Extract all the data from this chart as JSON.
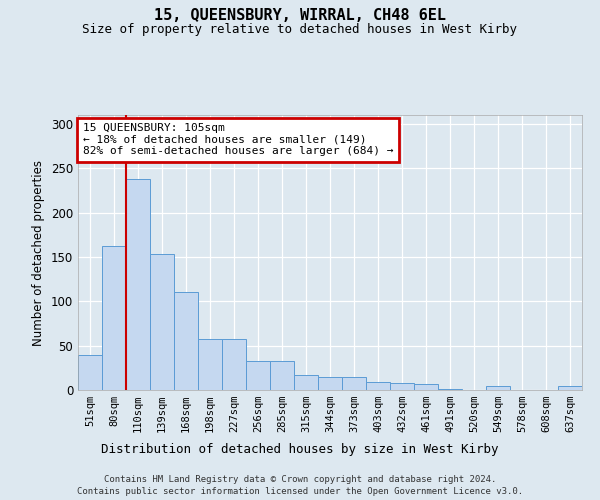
{
  "title1": "15, QUEENSBURY, WIRRAL, CH48 6EL",
  "title2": "Size of property relative to detached houses in West Kirby",
  "xlabel": "Distribution of detached houses by size in West Kirby",
  "ylabel": "Number of detached properties",
  "categories": [
    "51sqm",
    "80sqm",
    "110sqm",
    "139sqm",
    "168sqm",
    "198sqm",
    "227sqm",
    "256sqm",
    "285sqm",
    "315sqm",
    "344sqm",
    "373sqm",
    "403sqm",
    "432sqm",
    "461sqm",
    "491sqm",
    "520sqm",
    "549sqm",
    "578sqm",
    "608sqm",
    "637sqm"
  ],
  "values": [
    40,
    162,
    238,
    153,
    110,
    57,
    57,
    33,
    33,
    17,
    15,
    15,
    9,
    8,
    7,
    1,
    0,
    4,
    0,
    0,
    4
  ],
  "bar_color": "#c5d8f0",
  "bar_edge_color": "#5b9bd5",
  "highlight_bar_index": 2,
  "highlight_line_color": "#cc0000",
  "annotation_text": "15 QUEENSBURY: 105sqm\n← 18% of detached houses are smaller (149)\n82% of semi-detached houses are larger (684) →",
  "annotation_box_color": "#ffffff",
  "annotation_border_color": "#cc0000",
  "ylim": [
    0,
    310
  ],
  "yticks": [
    0,
    50,
    100,
    150,
    200,
    250,
    300
  ],
  "footer1": "Contains HM Land Registry data © Crown copyright and database right 2024.",
  "footer2": "Contains public sector information licensed under the Open Government Licence v3.0.",
  "bg_color": "#dde8f0",
  "plot_bg_color": "#dde8f0"
}
